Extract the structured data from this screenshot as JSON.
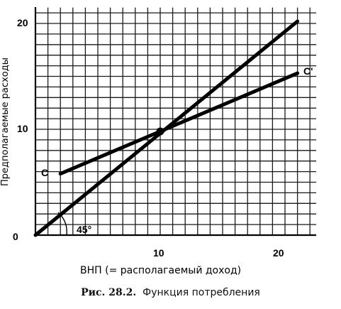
{
  "chart_data": {
    "type": "line",
    "xlabel": "ВНП (= располагаемый доход)",
    "ylabel": "Предполагаемые расходы",
    "xlim": [
      0,
      22.5
    ],
    "ylim": [
      0,
      21.5
    ],
    "x_ticks": [
      "10",
      "20"
    ],
    "y_ticks": [
      "0",
      "10",
      "20"
    ],
    "grid": true,
    "series": [
      {
        "name": "C",
        "end_label": "C'",
        "x": [
          2,
          21
        ],
        "y": [
          5.8,
          15.3
        ]
      },
      {
        "name": "",
        "x": [
          0,
          21
        ],
        "y": [
          0,
          20.2
        ]
      }
    ],
    "annotations": {
      "angle": "45°",
      "intersection": {
        "x": 10,
        "y": 9.8
      }
    }
  },
  "caption": {
    "fig_number": "Рис. 28.2.",
    "fig_title": "Функция потребления"
  }
}
